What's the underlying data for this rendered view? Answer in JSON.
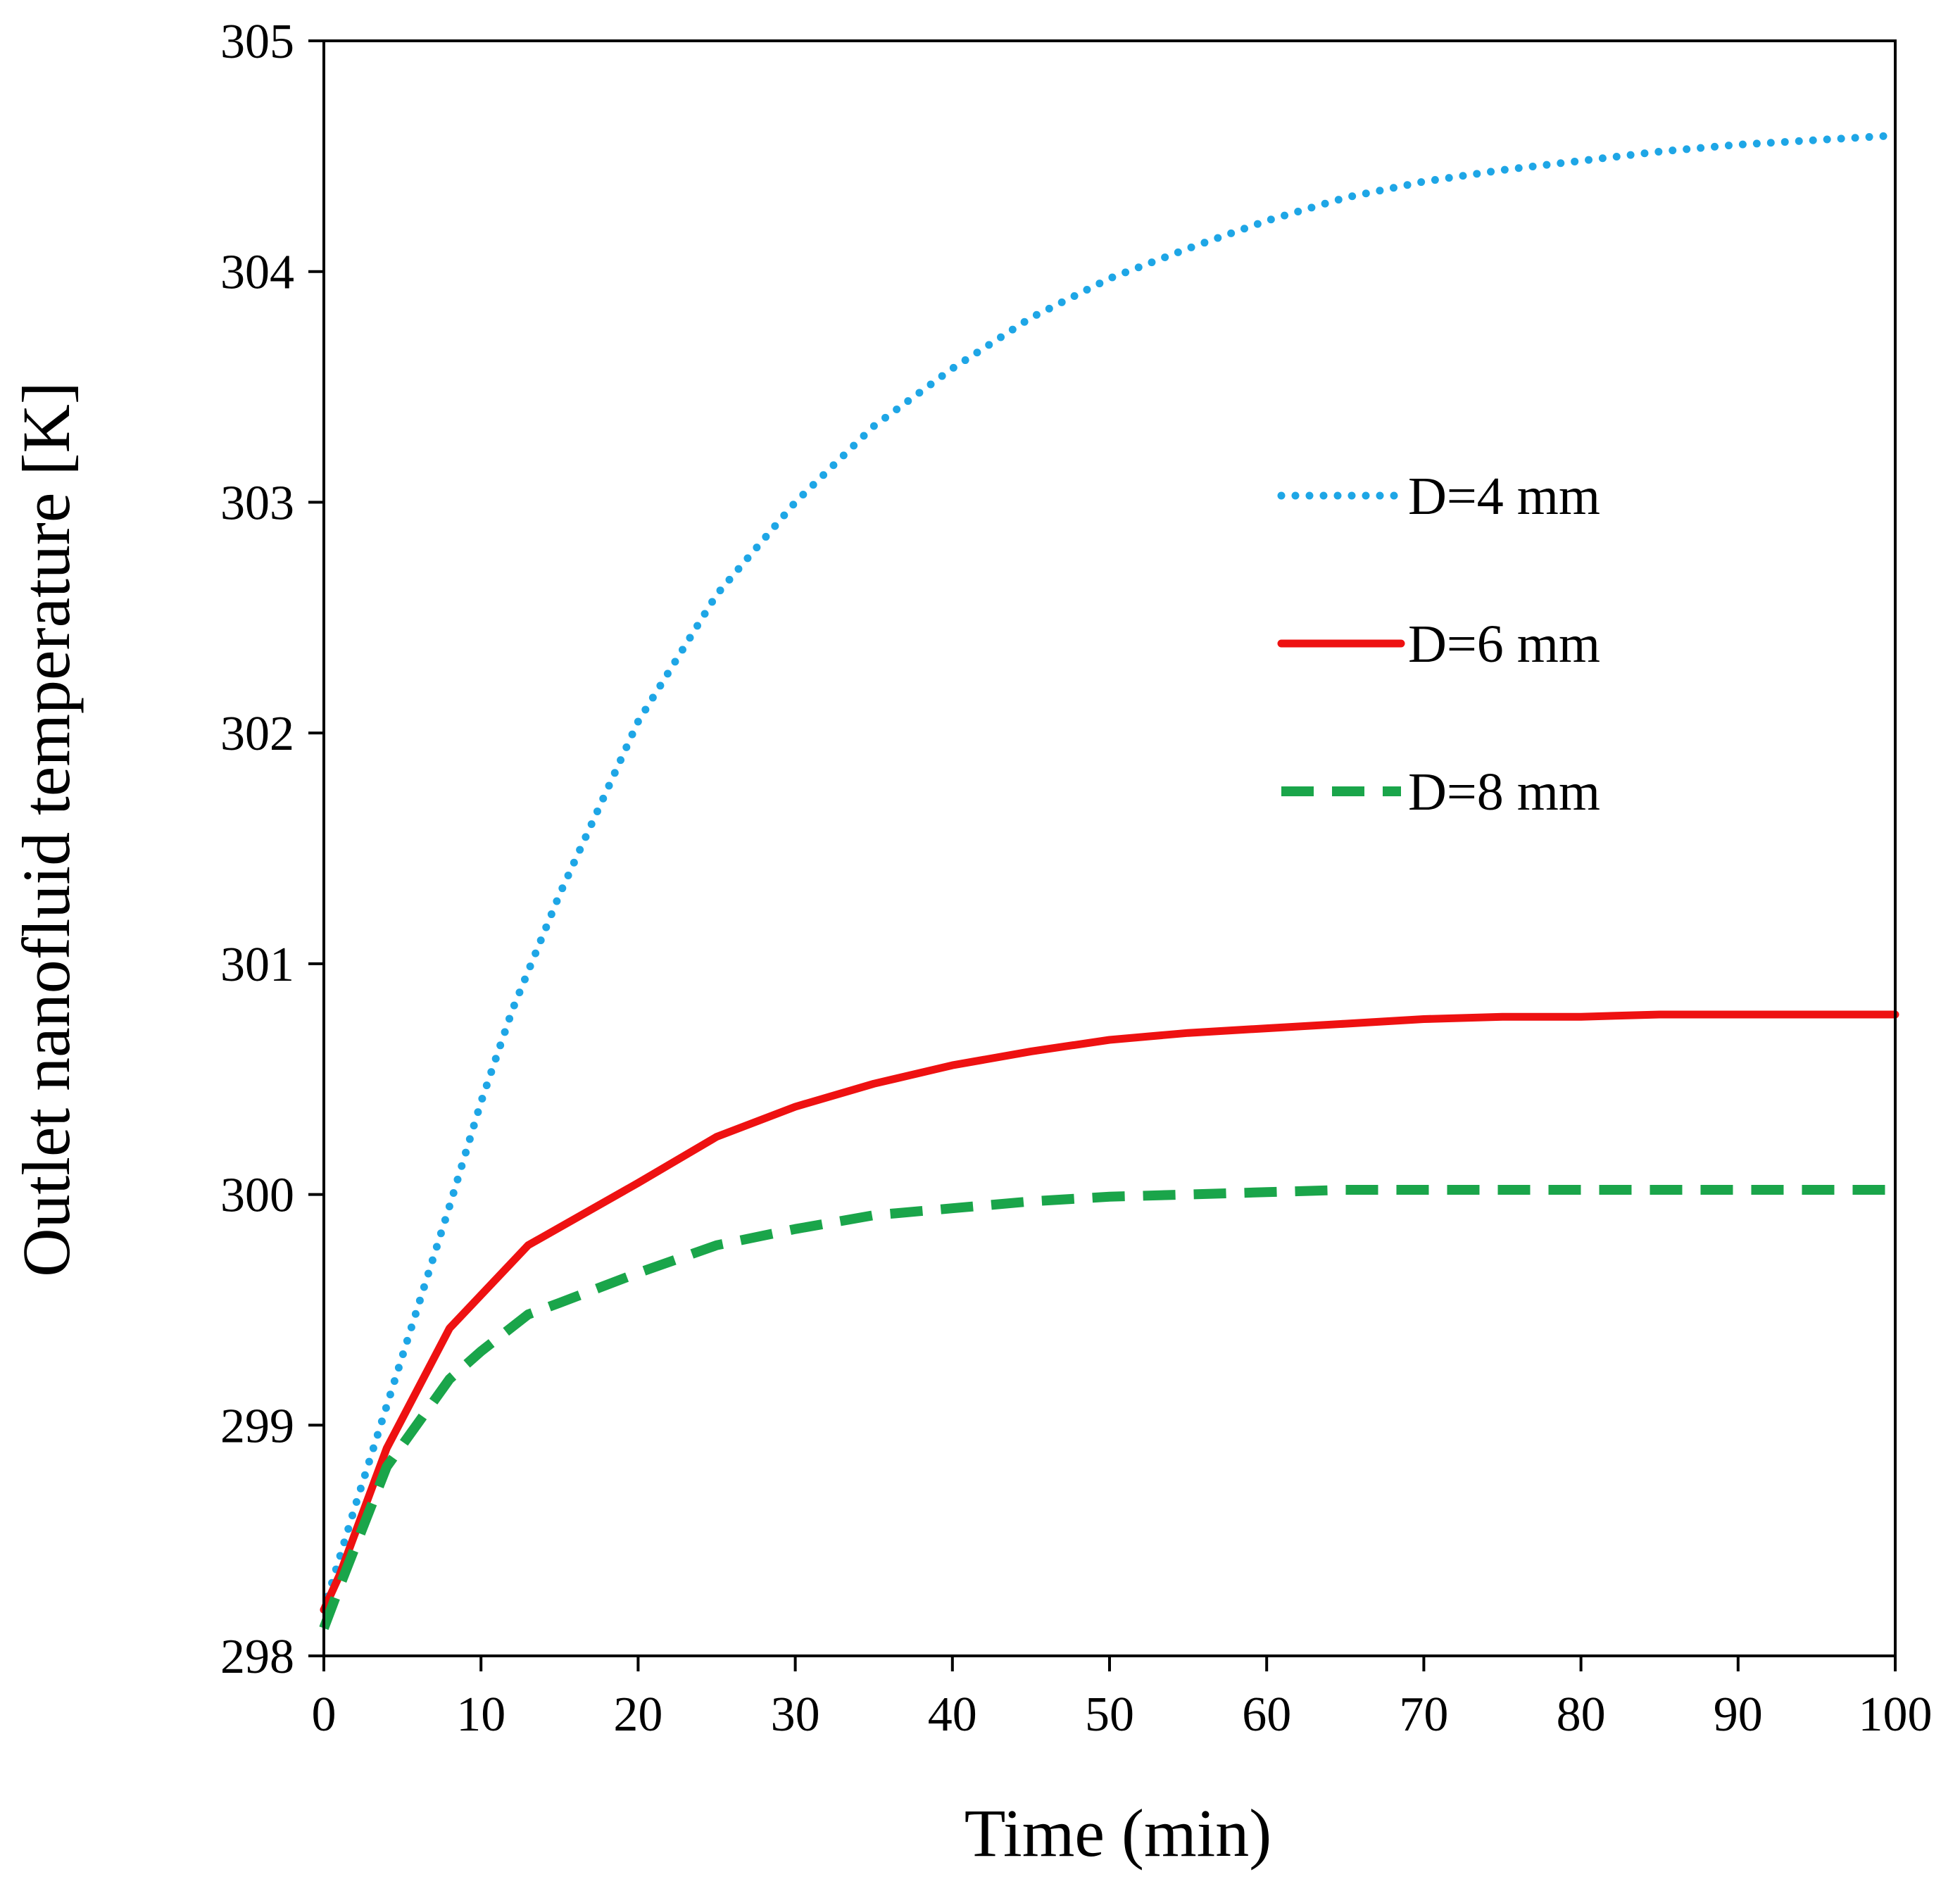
{
  "chart_data": {
    "type": "line",
    "title": "",
    "xlabel": "Time (min)",
    "ylabel": "Outlet nanofluid temperature [K]",
    "xlim": [
      0,
      100
    ],
    "ylim": [
      298,
      305
    ],
    "xticks": [
      0,
      10,
      20,
      30,
      40,
      50,
      60,
      70,
      80,
      90,
      100
    ],
    "yticks": [
      298,
      299,
      300,
      301,
      302,
      303,
      304,
      305
    ],
    "xtick_labels": [
      "0",
      "10",
      "20",
      "30",
      "40",
      "50",
      "60",
      "70",
      "80",
      "90",
      "100"
    ],
    "ytick_labels": [
      "298",
      "299",
      "300",
      "301",
      "302",
      "303",
      "304",
      "305"
    ],
    "grid": false,
    "legend_position": "right",
    "series": [
      {
        "name": "D=4 mm",
        "color": "#1ea6e6",
        "style": "dotted",
        "x": [
          0,
          2,
          5,
          8,
          10,
          12,
          15,
          18,
          20,
          25,
          30,
          35,
          40,
          45,
          50,
          55,
          60,
          65,
          70,
          75,
          80,
          85,
          90,
          95,
          100
        ],
        "y": [
          298.2,
          298.65,
          299.3,
          299.95,
          300.4,
          300.8,
          301.3,
          301.75,
          302.05,
          302.6,
          303.0,
          303.33,
          303.58,
          303.8,
          303.97,
          304.1,
          304.22,
          304.32,
          304.39,
          304.44,
          304.48,
          304.52,
          304.55,
          304.57,
          304.59
        ]
      },
      {
        "name": "D=6 mm",
        "color": "#ee1111",
        "style": "solid",
        "x": [
          0,
          1,
          4,
          8,
          13,
          20,
          25,
          30,
          35,
          40,
          45,
          50,
          55,
          60,
          65,
          70,
          75,
          80,
          85,
          90,
          95,
          100
        ],
        "y": [
          298.2,
          298.35,
          298.9,
          299.42,
          299.78,
          300.05,
          300.25,
          300.38,
          300.48,
          300.56,
          300.62,
          300.67,
          300.7,
          300.72,
          300.74,
          300.76,
          300.77,
          300.77,
          300.78,
          300.78,
          300.78,
          300.78
        ]
      },
      {
        "name": "D=8 mm",
        "color": "#1aa54a",
        "style": "dashed",
        "x": [
          0,
          1,
          4,
          8,
          10,
          13,
          15,
          20,
          25,
          30,
          35,
          40,
          45,
          50,
          55,
          60,
          65,
          70,
          75,
          80,
          85,
          90,
          95,
          100
        ],
        "y": [
          298.12,
          298.3,
          298.82,
          299.2,
          299.32,
          299.48,
          299.53,
          299.66,
          299.78,
          299.85,
          299.91,
          299.94,
          299.97,
          299.99,
          300.0,
          300.01,
          300.02,
          300.02,
          300.02,
          300.02,
          300.02,
          300.02,
          300.02,
          300.02
        ]
      }
    ]
  }
}
